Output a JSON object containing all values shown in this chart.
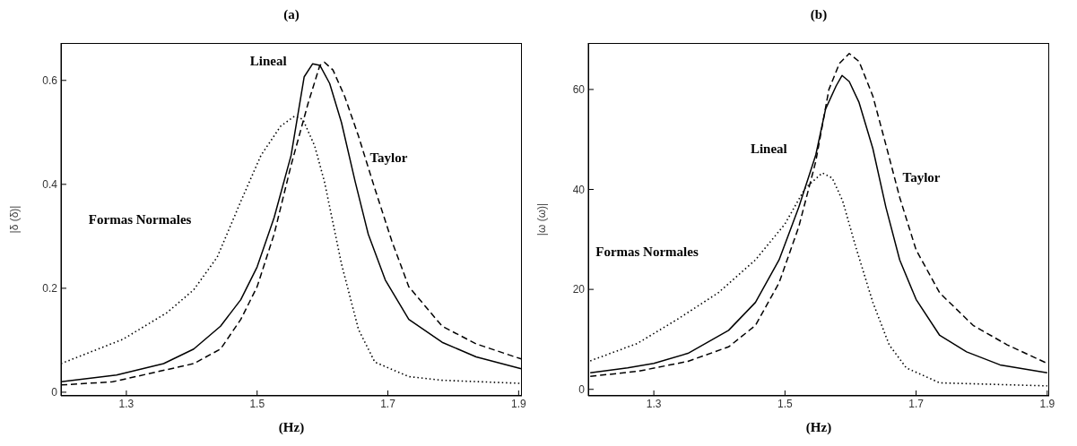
{
  "chart_data": [
    {
      "type": "line",
      "title": "(a)",
      "xlabel": "(Hz)",
      "ylabel": "|δ (δ)|",
      "xlim": [
        1.2,
        1.905
      ],
      "xticks": [
        1.3,
        1.5,
        1.7,
        1.9
      ],
      "ylim": [
        -0.007,
        0.672
      ],
      "yticks": [
        0,
        0.2,
        0.4,
        0.6
      ],
      "marker": "none",
      "series": [
        {
          "name": "Lineal",
          "color": "#000000",
          "line_style": "solid",
          "x": [
            1.2,
            1.285,
            1.357,
            1.403,
            1.444,
            1.475,
            1.5,
            1.526,
            1.552,
            1.572,
            1.585,
            1.596,
            1.611,
            1.629,
            1.65,
            1.67,
            1.696,
            1.732,
            1.783,
            1.835,
            1.904
          ],
          "values": [
            0.02,
            0.033,
            0.055,
            0.083,
            0.127,
            0.178,
            0.241,
            0.336,
            0.456,
            0.607,
            0.632,
            0.629,
            0.594,
            0.519,
            0.405,
            0.304,
            0.216,
            0.14,
            0.096,
            0.068,
            0.045
          ]
        },
        {
          "name": "Taylor",
          "color": "#000000",
          "line_style": "dashed",
          "x": [
            1.2,
            1.279,
            1.346,
            1.403,
            1.444,
            1.475,
            1.5,
            1.526,
            1.552,
            1.578,
            1.596,
            1.603,
            1.616,
            1.634,
            1.655,
            1.68,
            1.706,
            1.732,
            1.783,
            1.835,
            1.904
          ],
          "values": [
            0.014,
            0.02,
            0.039,
            0.055,
            0.083,
            0.14,
            0.203,
            0.304,
            0.437,
            0.556,
            0.629,
            0.635,
            0.62,
            0.569,
            0.493,
            0.392,
            0.291,
            0.203,
            0.127,
            0.093,
            0.064
          ]
        },
        {
          "name": "Formas Normales",
          "color": "#000000",
          "line_style": "dotted",
          "x": [
            1.2,
            1.295,
            1.362,
            1.403,
            1.439,
            1.475,
            1.506,
            1.536,
            1.557,
            1.57,
            1.588,
            1.603,
            1.629,
            1.655,
            1.68,
            1.732,
            1.783,
            1.904
          ],
          "values": [
            0.055,
            0.102,
            0.153,
            0.197,
            0.26,
            0.367,
            0.456,
            0.512,
            0.531,
            0.525,
            0.474,
            0.405,
            0.247,
            0.121,
            0.058,
            0.03,
            0.023,
            0.017
          ]
        }
      ]
    },
    {
      "type": "line",
      "title": "(b)",
      "xlabel": "(Hz)",
      "ylabel": "|ω (ω)|",
      "xlim": [
        1.2,
        1.903
      ],
      "xticks": [
        1.3,
        1.5,
        1.7,
        1.9
      ],
      "ylim": [
        -1.3,
        69.3
      ],
      "yticks": [
        0,
        20,
        40,
        60
      ],
      "marker": "none",
      "series": [
        {
          "name": "Lineal",
          "color": "#000000",
          "line_style": "solid",
          "x": [
            1.203,
            1.26,
            1.3,
            1.352,
            1.414,
            1.455,
            1.491,
            1.521,
            1.547,
            1.562,
            1.578,
            1.587,
            1.598,
            1.613,
            1.634,
            1.654,
            1.675,
            1.7,
            1.736,
            1.777,
            1.828,
            1.9
          ],
          "values": [
            3.3,
            4.3,
            5.2,
            7.2,
            11.8,
            17.4,
            25.9,
            36.4,
            46.9,
            56.1,
            60.7,
            62.8,
            61.6,
            57.4,
            48.2,
            36.4,
            25.9,
            18,
            10.8,
            7.5,
            4.9,
            3.3
          ]
        },
        {
          "name": "Taylor",
          "color": "#000000",
          "line_style": "dashed",
          "x": [
            1.203,
            1.275,
            1.352,
            1.414,
            1.455,
            1.491,
            1.521,
            1.547,
            1.567,
            1.583,
            1.598,
            1.613,
            1.634,
            1.654,
            1.675,
            1.7,
            1.736,
            1.787,
            1.839,
            1.9
          ],
          "values": [
            2.6,
            3.6,
            5.6,
            8.5,
            12.8,
            21.3,
            32.5,
            45.6,
            60,
            65.2,
            67.2,
            65.6,
            58.7,
            48.9,
            38.4,
            27.9,
            19.3,
            12.8,
            8.9,
            5.2
          ]
        },
        {
          "name": "Formas Normales",
          "color": "#000000",
          "line_style": "dotted",
          "x": [
            1.203,
            1.275,
            1.337,
            1.398,
            1.455,
            1.5,
            1.531,
            1.557,
            1.572,
            1.588,
            1.608,
            1.634,
            1.659,
            1.685,
            1.736,
            1.9
          ],
          "values": [
            5.7,
            9.2,
            14.1,
            19.3,
            25.9,
            33.1,
            40.3,
            43.3,
            42.3,
            37.7,
            28.5,
            17.4,
            8.9,
            4.3,
            1.3,
            0.7
          ]
        }
      ]
    }
  ]
}
